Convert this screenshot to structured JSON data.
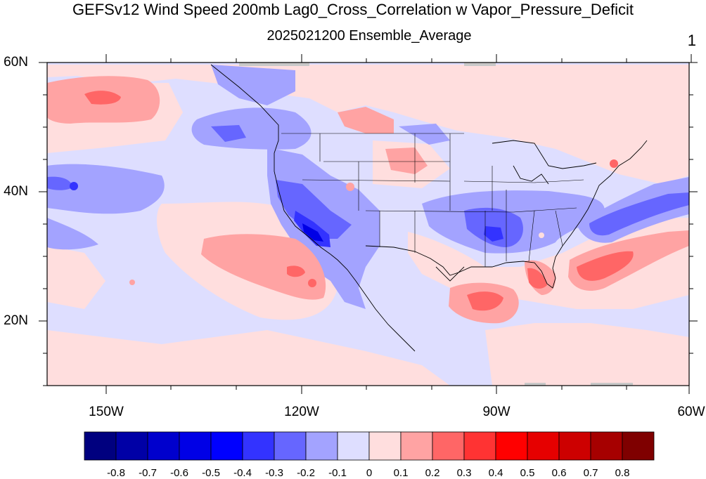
{
  "title": "GEFSv12 Wind Speed 200mb Lag0_Cross_Correlation w Vapor_Pressure_Deficit",
  "subtitle": "2025021200 Ensemble_Average",
  "panel_number": "1",
  "map": {
    "lon_range": [
      -160,
      -60
    ],
    "lat_range": [
      10,
      60
    ],
    "lat_ticks": [
      {
        "label": "60N",
        "lat": 60
      },
      {
        "label": "40N",
        "lat": 40
      },
      {
        "label": "20N",
        "lat": 20
      }
    ],
    "lon_ticks": [
      {
        "label": "150W",
        "lon": -150
      },
      {
        "label": "120W",
        "lon": -120
      },
      {
        "label": "90W",
        "lon": -90
      },
      {
        "label": "60W",
        "lon": -60
      }
    ]
  },
  "colorbar": {
    "colors": [
      "#00007f",
      "#0000a6",
      "#0000cd",
      "#0000e6",
      "#0000ff",
      "#3333ff",
      "#6666ff",
      "#a3a3ff",
      "#dedeff",
      "#ffdede",
      "#ffa3a3",
      "#ff6666",
      "#ff3333",
      "#ff0000",
      "#e60000",
      "#cd0000",
      "#a60000",
      "#7f0000"
    ],
    "labels": [
      "-0.8",
      "-0.7",
      "-0.6",
      "-0.5",
      "-0.4",
      "-0.3",
      "-0.2",
      "-0.1",
      "0",
      "0.1",
      "0.2",
      "0.3",
      "0.4",
      "0.5",
      "0.6",
      "0.7",
      "0.8"
    ]
  }
}
